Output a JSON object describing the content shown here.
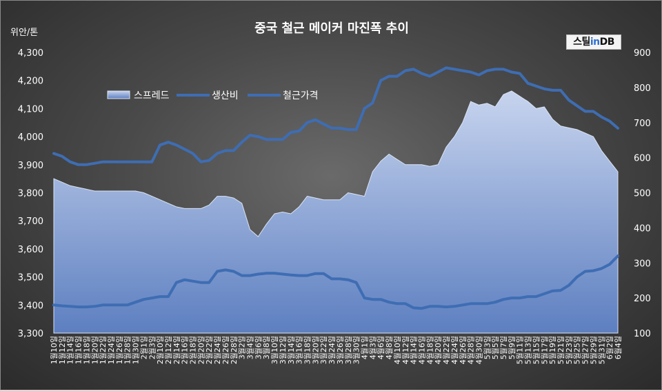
{
  "chart_data": {
    "type": "area",
    "title": "중국 철근 메이커 마진폭 추이",
    "ylabel_left": "위안/톤",
    "ylim_left": [
      3300,
      4300
    ],
    "yticks_left": [
      "3,300",
      "3,400",
      "3,500",
      "3,600",
      "3,700",
      "3,800",
      "3,900",
      "4,000",
      "4,100",
      "4,200",
      "4,300"
    ],
    "ylim_right": [
      100,
      900
    ],
    "yticks_right": [
      "100",
      "200",
      "300",
      "400",
      "500",
      "600",
      "700",
      "800",
      "900"
    ],
    "x_labels": [
      "1월10일",
      "1월12일",
      "1월14일",
      "1월16일",
      "1월18일",
      "1월20일",
      "1월22일",
      "1월24일",
      "1월26일",
      "1월28일",
      "1월30일",
      "2월1일",
      "2월3일",
      "2월10일",
      "2월12일",
      "2월14일",
      "2월16일",
      "2월18일",
      "2월20일",
      "2월22일",
      "2월24일",
      "2월26일",
      "2월28일",
      "3월2일",
      "3월4일",
      "3월6일",
      "3월8일",
      "3월10일",
      "3월12일",
      "3월14일",
      "3월16일",
      "3월18일",
      "3월20일",
      "3월22일",
      "3월24일",
      "3월26일",
      "3월28일",
      "3월30일",
      "4월1일",
      "4월3일",
      "4월6일",
      "4월8일",
      "4월10일",
      "4월12일",
      "4월14일",
      "4월16일",
      "4월18일",
      "4월20일",
      "4월22일",
      "4월24일",
      "4월26일",
      "4월28일",
      "4월30일",
      "5월3일",
      "5월5일",
      "5월7일",
      "5월9일",
      "5월11일",
      "5월13일",
      "5월15일",
      "5월17일",
      "5월19일",
      "5월21일",
      "5월23일",
      "5월25일",
      "5월27일",
      "5월29일",
      "5월31일",
      "6월2일",
      "6월4일"
    ],
    "series": [
      {
        "name": "스프레드",
        "axis": "right",
        "type": "area",
        "color": "#aebfe0",
        "values": [
          540,
          530,
          520,
          515,
          510,
          505,
          505,
          505,
          505,
          505,
          505,
          500,
          490,
          480,
          470,
          460,
          455,
          455,
          455,
          465,
          490,
          490,
          485,
          470,
          395,
          375,
          410,
          440,
          445,
          440,
          460,
          490,
          485,
          480,
          480,
          480,
          500,
          495,
          490,
          560,
          590,
          610,
          595,
          580,
          580,
          580,
          575,
          580,
          630,
          660,
          700,
          760,
          750,
          755,
          745,
          780,
          790,
          775,
          760,
          740,
          745,
          710,
          690,
          685,
          680,
          670,
          660,
          620,
          590,
          560
        ]
      },
      {
        "name": "생산비",
        "axis": "left",
        "type": "line",
        "color": "#3e6db3",
        "values": [
          3400,
          3397,
          3395,
          3393,
          3393,
          3395,
          3400,
          3400,
          3400,
          3400,
          3410,
          3420,
          3425,
          3430,
          3430,
          3480,
          3490,
          3485,
          3480,
          3480,
          3520,
          3525,
          3520,
          3505,
          3505,
          3510,
          3513,
          3513,
          3510,
          3507,
          3505,
          3505,
          3512,
          3512,
          3493,
          3493,
          3490,
          3480,
          3425,
          3420,
          3420,
          3410,
          3405,
          3405,
          3390,
          3388,
          3395,
          3395,
          3393,
          3395,
          3400,
          3405,
          3405,
          3405,
          3410,
          3420,
          3425,
          3425,
          3430,
          3430,
          3440,
          3450,
          3452,
          3470,
          3500,
          3520,
          3522,
          3530,
          3545,
          3575
        ]
      },
      {
        "name": "철근가격",
        "axis": "left",
        "type": "line",
        "color": "#3e6db3",
        "values": [
          3940,
          3930,
          3910,
          3900,
          3900,
          3905,
          3910,
          3910,
          3910,
          3910,
          3910,
          3910,
          3910,
          3970,
          3980,
          3970,
          3955,
          3940,
          3910,
          3915,
          3940,
          3950,
          3950,
          3980,
          4005,
          4000,
          3990,
          3990,
          3990,
          4015,
          4020,
          4050,
          4060,
          4045,
          4030,
          4030,
          4025,
          4025,
          4100,
          4120,
          4200,
          4215,
          4215,
          4235,
          4240,
          4225,
          4215,
          4230,
          4245,
          4240,
          4235,
          4230,
          4220,
          4235,
          4240,
          4240,
          4230,
          4225,
          4190,
          4180,
          4170,
          4165,
          4165,
          4130,
          4110,
          4090,
          4090,
          4070,
          4055,
          4030
        ]
      }
    ],
    "legend_position": "top-left",
    "grid": false,
    "colors": {
      "spread_fill": "#aebfe0",
      "line": "#3e6db3",
      "text": "#ffffff"
    }
  },
  "logo": {
    "prefix": "스틸",
    "mid": "in",
    "suffix": "DB"
  }
}
